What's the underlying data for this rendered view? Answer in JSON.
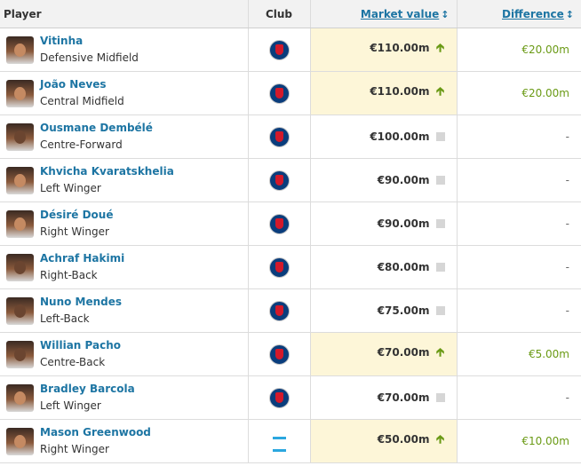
{
  "header": {
    "player": "Player",
    "club": "Club",
    "market_value": "Market value",
    "difference": "Difference"
  },
  "colors": {
    "link": "#1d75a3",
    "increase": "#6a9a15",
    "highlight": "#fdf6d8"
  },
  "rows": [
    {
      "name": "Vitinha",
      "position": "Defensive Midfield",
      "club_icon": "psg-crest-icon",
      "value": "€110.00m",
      "trend": "up",
      "difference": "€20.00m"
    },
    {
      "name": "João Neves",
      "position": "Central Midfield",
      "club_icon": "psg-crest-icon",
      "value": "€110.00m",
      "trend": "up",
      "difference": "€20.00m"
    },
    {
      "name": "Ousmane Dembélé",
      "position": "Centre-Forward",
      "club_icon": "psg-crest-icon",
      "value": "€100.00m",
      "trend": "same",
      "difference": "-"
    },
    {
      "name": "Khvicha Kvaratskhelia",
      "position": "Left Winger",
      "club_icon": "psg-crest-icon",
      "value": "€90.00m",
      "trend": "same",
      "difference": "-"
    },
    {
      "name": "Désiré Doué",
      "position": "Right Winger",
      "club_icon": "psg-crest-icon",
      "value": "€90.00m",
      "trend": "same",
      "difference": "-"
    },
    {
      "name": "Achraf Hakimi",
      "position": "Right-Back",
      "club_icon": "psg-crest-icon",
      "value": "€80.00m",
      "trend": "same",
      "difference": "-"
    },
    {
      "name": "Nuno Mendes",
      "position": "Left-Back",
      "club_icon": "psg-crest-icon",
      "value": "€75.00m",
      "trend": "same",
      "difference": "-"
    },
    {
      "name": "Willian Pacho",
      "position": "Centre-Back",
      "club_icon": "psg-crest-icon",
      "value": "€70.00m",
      "trend": "up",
      "difference": "€5.00m"
    },
    {
      "name": "Bradley Barcola",
      "position": "Left Winger",
      "club_icon": "psg-crest-icon",
      "value": "€70.00m",
      "trend": "same",
      "difference": "-"
    },
    {
      "name": "Mason Greenwood",
      "position": "Right Winger",
      "club_icon": "om-crest-icon",
      "value": "€50.00m",
      "trend": "up",
      "difference": "€10.00m"
    }
  ]
}
